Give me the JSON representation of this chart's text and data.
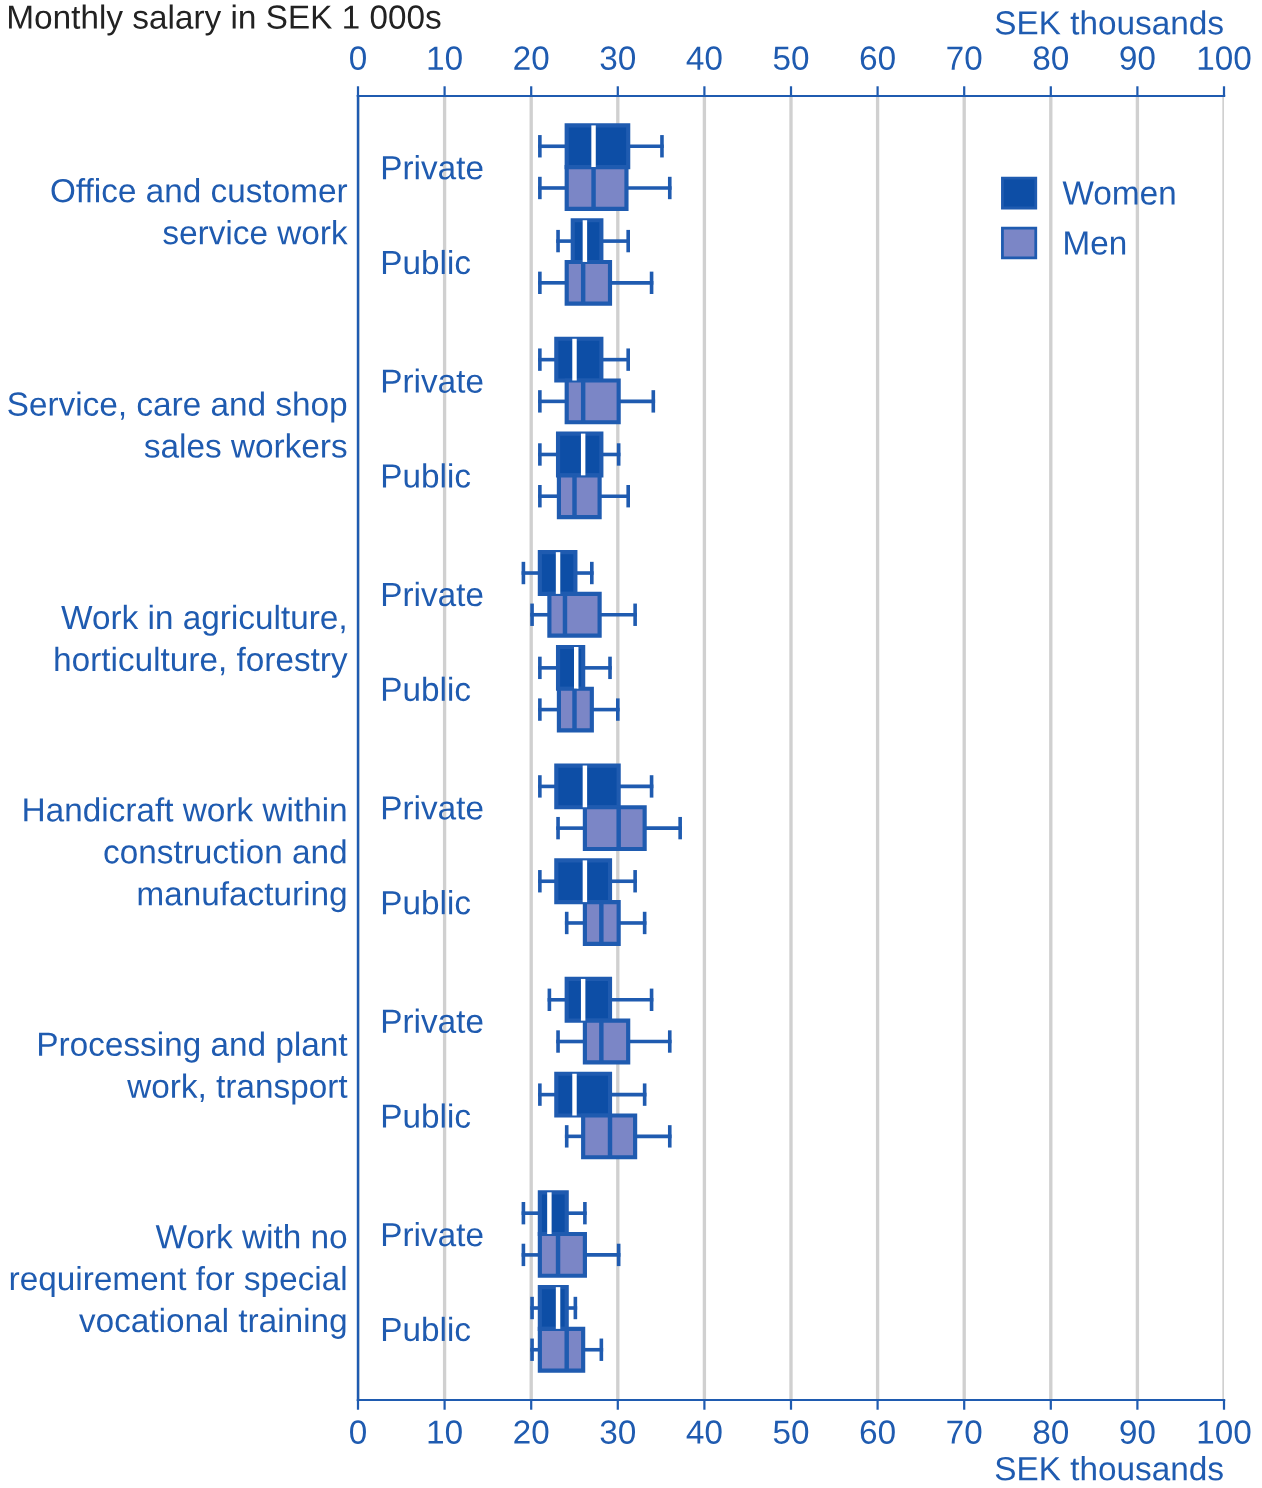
{
  "chart_data": {
    "type": "box",
    "orientation": "horizontal",
    "title": "Monthly salary in SEK 1 000s",
    "xlabel": "SEK thousands",
    "x2label": "SEK thousands",
    "categories": [
      "Private",
      "Public",
      "Private",
      "Public",
      "Private",
      "Public",
      "Private",
      "Public",
      "Private",
      "Public",
      "Private",
      "Public"
    ],
    "annotations": [
      "Office and customer service work",
      "Service, care and shop sales workers",
      "Work in agriculture, horticulture, forestry",
      "Handicraft work within construction and manufacturing",
      "Processing and plant work, transport",
      "Work with no requirement for special vocational training"
    ],
    "xlim": [
      0,
      100
    ],
    "xticks": [
      0,
      10,
      20,
      30,
      40,
      50,
      60,
      70,
      80,
      90,
      100
    ],
    "x2lim": [
      0,
      100
    ],
    "x2ticks": [
      0,
      10,
      20,
      30,
      40,
      50,
      60,
      70,
      80,
      90,
      100
    ],
    "grid": "x",
    "legend": "top right",
    "series": [
      {
        "name": "Women",
        "color": "#0d4ea6",
        "boxes": [
          {
            "low": 21,
            "q1": 24.1,
            "median": 27.2,
            "q3": 31.2,
            "high": 35.1
          },
          {
            "low": 23.1,
            "q1": 24.8,
            "median": 26.2,
            "q3": 28.1,
            "high": 31.2
          },
          {
            "low": 21,
            "q1": 22.9,
            "median": 25,
            "q3": 28.1,
            "high": 31.2
          },
          {
            "low": 21,
            "q1": 23.1,
            "median": 26,
            "q3": 28.1,
            "high": 30.1
          },
          {
            "low": 19.1,
            "q1": 21,
            "median": 23.1,
            "q3": 25.1,
            "high": 27
          },
          {
            "low": 21,
            "q1": 23.1,
            "median": 25.2,
            "q3": 26,
            "high": 29.1
          },
          {
            "low": 21,
            "q1": 22.9,
            "median": 26.2,
            "q3": 30.1,
            "high": 33.9
          },
          {
            "low": 21,
            "q1": 22.9,
            "median": 26.2,
            "q3": 29.1,
            "high": 32
          },
          {
            "low": 22.1,
            "q1": 24.1,
            "median": 26,
            "q3": 29.1,
            "high": 33.9
          },
          {
            "low": 21,
            "q1": 22.9,
            "median": 25,
            "q3": 29.1,
            "high": 33.1
          },
          {
            "low": 19.1,
            "q1": 21,
            "median": 22.1,
            "q3": 24.1,
            "high": 26.2
          },
          {
            "low": 20.1,
            "q1": 21,
            "median": 23.1,
            "q3": 24.1,
            "high": 25.1
          }
        ]
      },
      {
        "name": "Men",
        "color": "#7b86c6",
        "boxes": [
          {
            "low": 21,
            "q1": 24.1,
            "median": 27.2,
            "q3": 31,
            "high": 36
          },
          {
            "low": 21,
            "q1": 24.1,
            "median": 26,
            "q3": 29.1,
            "high": 33.9
          },
          {
            "low": 21,
            "q1": 24.1,
            "median": 26,
            "q3": 30.1,
            "high": 34.1
          },
          {
            "low": 21,
            "q1": 23.2,
            "median": 25,
            "q3": 27.9,
            "high": 31.2
          },
          {
            "low": 20.1,
            "q1": 22.1,
            "median": 23.9,
            "q3": 27.9,
            "high": 32
          },
          {
            "low": 21,
            "q1": 23.2,
            "median": 25,
            "q3": 27,
            "high": 30
          },
          {
            "low": 23.1,
            "q1": 26.2,
            "median": 30.1,
            "q3": 33.1,
            "high": 37.2
          },
          {
            "low": 24.1,
            "q1": 26.2,
            "median": 28.1,
            "q3": 30.1,
            "high": 33.1
          },
          {
            "low": 23.1,
            "q1": 26.2,
            "median": 28.1,
            "q3": 31.2,
            "high": 36
          },
          {
            "low": 24.1,
            "q1": 26,
            "median": 29.1,
            "q3": 32,
            "high": 36
          },
          {
            "low": 19.1,
            "q1": 21,
            "median": 23.1,
            "q3": 26.2,
            "high": 30.1
          },
          {
            "low": 20.1,
            "q1": 21,
            "median": 24.1,
            "q3": 26,
            "high": 28.1
          }
        ]
      }
    ]
  }
}
